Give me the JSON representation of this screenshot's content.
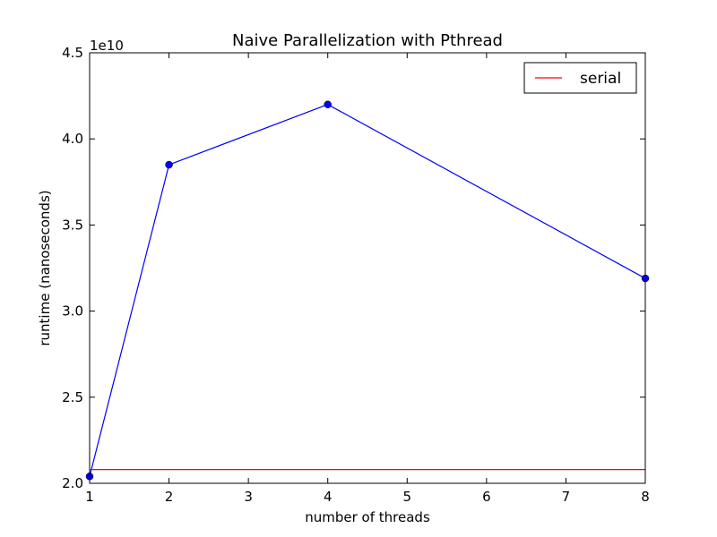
{
  "chart_data": {
    "type": "line",
    "title": "Naive Parallelization with Pthread",
    "xlabel": "number of threads",
    "ylabel": "runtime (nanoseconds)",
    "y_offset_label": "1e10",
    "xlim": [
      1,
      8
    ],
    "ylim": [
      2.0,
      4.5
    ],
    "x_ticks": [
      1,
      2,
      3,
      4,
      5,
      6,
      7,
      8
    ],
    "x_tick_labels": [
      "1",
      "2",
      "3",
      "4",
      "5",
      "6",
      "7",
      "8"
    ],
    "y_ticks": [
      2.0,
      2.5,
      3.0,
      3.5,
      4.0,
      4.5
    ],
    "y_tick_labels": [
      "2.0",
      "2.5",
      "3.0",
      "3.5",
      "4.0",
      "4.5"
    ],
    "grid": false,
    "legend_position": "top-right",
    "series": [
      {
        "x": [
          1,
          2,
          4,
          8
        ],
        "y": [
          2.04,
          3.85,
          4.2,
          3.19
        ],
        "color": "#0000ff",
        "marker": "circle",
        "in_legend": false
      },
      {
        "name": "serial",
        "x": [
          1,
          8
        ],
        "y": [
          2.08,
          2.08
        ],
        "color": "#ff0000",
        "marker": "none",
        "in_legend": true
      }
    ]
  }
}
